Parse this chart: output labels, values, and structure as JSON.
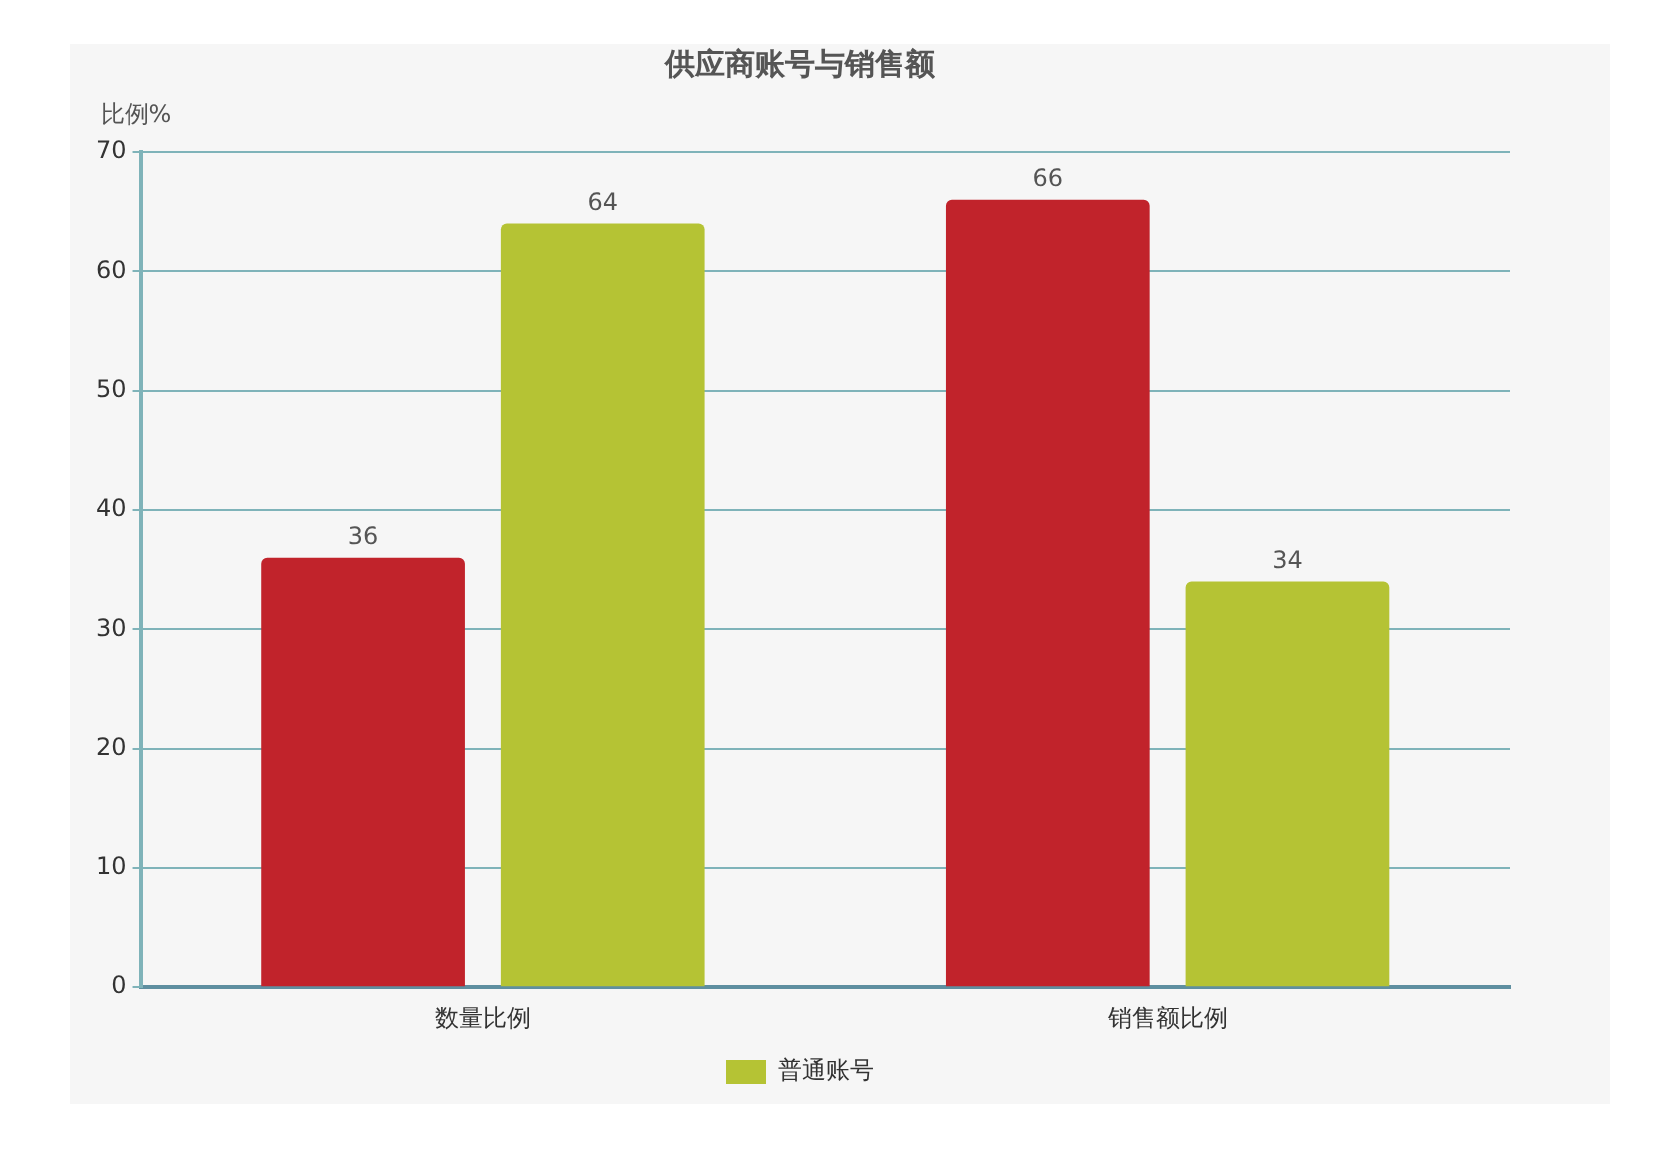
{
  "chart_data": {
    "type": "bar",
    "title": "供应商账号与销售额",
    "ylabel": "比例%",
    "categories": [
      "数量比例",
      "销售额比例"
    ],
    "series": [
      {
        "color": "#c1232b",
        "values": [
          36,
          66
        ]
      },
      {
        "name": "普通账号",
        "color": "#b5c334",
        "values": [
          64,
          34
        ]
      }
    ],
    "ylim": [
      0,
      70
    ],
    "yticks": [
      0,
      10,
      20,
      30,
      40,
      50,
      60,
      70
    ],
    "grid": "y",
    "legend": "bottom",
    "data_labels": true
  }
}
